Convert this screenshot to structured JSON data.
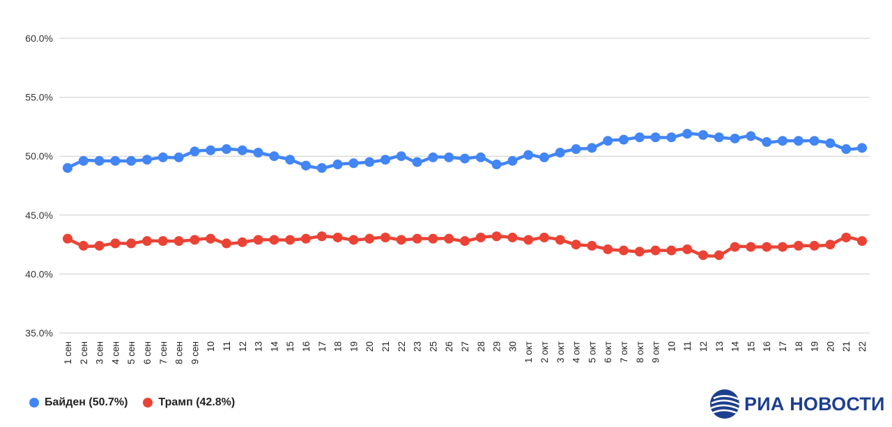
{
  "chart_data": {
    "type": "line",
    "title": "",
    "xlabel": "",
    "ylabel": "",
    "ylim": [
      35,
      60
    ],
    "yticks": [
      "60.0%",
      "55.0%",
      "50.0%",
      "45.0%",
      "40.0%",
      "35.0%"
    ],
    "ytick_values": [
      60,
      55,
      50,
      45,
      40,
      35
    ],
    "grid": true,
    "legend_position": "bottom-left",
    "categories": [
      "1 сен",
      "2 сен",
      "3 сен",
      "4 сен",
      "5 сен",
      "6 сен",
      "7 сен",
      "8 сен",
      "9 сен",
      "10",
      "11",
      "12",
      "13",
      "14",
      "15",
      "16",
      "17",
      "18",
      "19",
      "20",
      "21",
      "22",
      "23",
      "25",
      "26",
      "27",
      "28",
      "29",
      "30",
      "1 окт",
      "2 окт",
      "3 окт",
      "4 окт",
      "5 окт",
      "6 окт",
      "7 окт",
      "8 окт",
      "9 окт",
      "10",
      "11",
      "12",
      "13",
      "14",
      "15",
      "16",
      "17",
      "18",
      "19",
      "20",
      "21",
      "22"
    ],
    "series": [
      {
        "name": "Байден (50.7%)",
        "color": "#4285f4",
        "values": [
          49.0,
          49.6,
          49.6,
          49.6,
          49.6,
          49.7,
          49.9,
          49.9,
          50.4,
          50.5,
          50.6,
          50.5,
          50.3,
          50.0,
          49.7,
          49.2,
          49.0,
          49.3,
          49.4,
          49.5,
          49.7,
          50.0,
          49.5,
          49.9,
          49.9,
          49.8,
          49.9,
          49.3,
          49.6,
          50.1,
          49.9,
          50.3,
          50.6,
          50.7,
          51.3,
          51.4,
          51.6,
          51.6,
          51.6,
          51.9,
          51.8,
          51.6,
          51.5,
          51.7,
          51.2,
          51.3,
          51.3,
          51.3,
          51.1,
          50.6,
          50.7
        ]
      },
      {
        "name": "Трамп (42.8%)",
        "color": "#ea4335",
        "values": [
          43.0,
          42.4,
          42.4,
          42.6,
          42.6,
          42.8,
          42.8,
          42.8,
          42.9,
          43.0,
          42.6,
          42.7,
          42.9,
          42.9,
          42.9,
          43.0,
          43.2,
          43.1,
          42.9,
          43.0,
          43.1,
          42.9,
          43.0,
          43.0,
          43.0,
          42.8,
          43.1,
          43.2,
          43.1,
          42.9,
          43.1,
          42.9,
          42.5,
          42.4,
          42.1,
          42.0,
          41.9,
          42.0,
          42.0,
          42.1,
          41.6,
          41.6,
          42.3,
          42.3,
          42.3,
          42.3,
          42.4,
          42.4,
          42.5,
          43.1,
          42.8
        ]
      }
    ]
  },
  "branding": {
    "logo_text": "РИА НОВОСТИ",
    "logo_color": "#1d3f8f"
  }
}
